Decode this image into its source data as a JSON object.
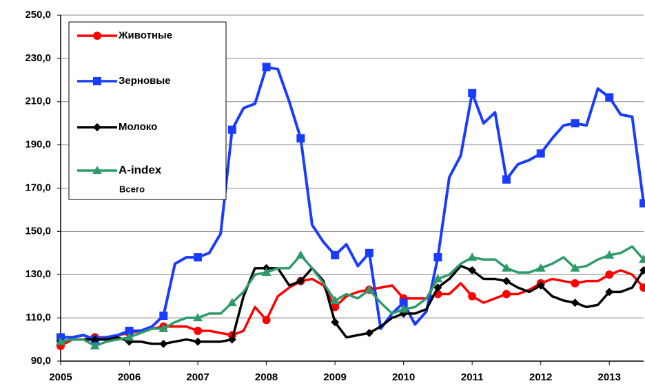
{
  "chart_data": {
    "type": "line",
    "x": [
      2005,
      2005.1667,
      2005.3333,
      2005.5,
      2005.6667,
      2005.8333,
      2006,
      2006.1667,
      2006.3333,
      2006.5,
      2006.6667,
      2006.8333,
      2007,
      2007.1667,
      2007.3333,
      2007.5,
      2007.6667,
      2007.8333,
      2008,
      2008.1667,
      2008.3333,
      2008.5,
      2008.6667,
      2008.8333,
      2009,
      2009.1667,
      2009.3333,
      2009.5,
      2009.6667,
      2009.8333,
      2010,
      2010.1667,
      2010.3333,
      2010.5,
      2010.6667,
      2010.8333,
      2011,
      2011.1667,
      2011.3333,
      2011.5,
      2011.6667,
      2011.8333,
      2012,
      2012.1667,
      2012.3333,
      2012.5,
      2012.6667,
      2012.8333,
      2013,
      2013.1667,
      2013.3333,
      2013.5
    ],
    "series": [
      {
        "name": "Животные",
        "color": "#ff0000",
        "marker": "circle",
        "values": [
          97,
          100,
          100,
          101,
          101,
          102,
          103,
          104,
          105,
          106,
          106,
          106,
          104,
          104,
          103,
          102,
          104,
          115,
          109,
          120,
          124,
          127,
          128,
          125,
          115,
          120,
          122,
          123,
          124,
          125,
          119,
          119,
          119,
          121,
          121,
          126,
          120,
          117,
          119,
          121,
          121,
          123,
          126,
          128,
          127,
          126,
          127,
          127,
          130,
          132,
          130,
          124
        ]
      },
      {
        "name": "Зерновые",
        "color": "#1a3cff",
        "marker": "square",
        "values": [
          101,
          101,
          102,
          100,
          101,
          102,
          104,
          104,
          106,
          111,
          135,
          138,
          138,
          140,
          149,
          197,
          207,
          209,
          226,
          225,
          210,
          193,
          153,
          145,
          139,
          144,
          134,
          140,
          105,
          112,
          117,
          107,
          113,
          138,
          175,
          185,
          214,
          200,
          205,
          174,
          181,
          183,
          186,
          193,
          199,
          200,
          199,
          216,
          212,
          204,
          203,
          163
        ]
      },
      {
        "name": "Молоко",
        "color": "#000000",
        "marker": "diamond",
        "values": [
          99,
          100,
          100,
          100,
          100,
          101,
          99,
          99,
          98,
          98,
          99,
          100,
          99,
          99,
          99,
          100,
          120,
          133,
          133,
          133,
          125,
          127,
          133,
          127,
          108,
          101,
          102,
          103,
          106,
          110,
          112,
          112,
          114,
          124,
          128,
          134,
          132,
          128,
          128,
          127,
          124,
          122,
          125,
          120,
          118,
          117,
          115,
          116,
          122,
          122,
          124,
          132
        ]
      },
      {
        "name": "A-index",
        "color": "#2e9a6a",
        "marker": "triangle",
        "values": [
          99,
          100,
          100,
          97,
          99,
          100,
          101,
          103,
          105,
          105,
          108,
          110,
          110,
          112,
          112,
          117,
          122,
          130,
          131,
          133,
          133,
          139,
          133,
          126,
          118,
          121,
          119,
          123,
          117,
          112,
          114,
          115,
          119,
          128,
          130,
          135,
          138,
          137,
          137,
          133,
          131,
          131,
          133,
          135,
          138,
          133,
          134,
          137,
          139,
          140,
          143,
          137
        ]
      }
    ],
    "legend_subtitle": "Всего",
    "xlim": [
      2005,
      2013.5
    ],
    "xticks": [
      2005,
      2006,
      2007,
      2008,
      2009,
      2010,
      2011,
      2012,
      2013
    ],
    "ylim": [
      90,
      250
    ],
    "yticks": [
      {
        "value": 90,
        "label": "90,0"
      },
      {
        "value": 110,
        "label": "110,0"
      },
      {
        "value": 130,
        "label": "130,0"
      },
      {
        "value": 150,
        "label": "150,0"
      },
      {
        "value": 170,
        "label": "170,0"
      },
      {
        "value": 190,
        "label": "190,0"
      },
      {
        "value": 210,
        "label": "210,0"
      },
      {
        "value": 230,
        "label": "230,0"
      },
      {
        "value": 250,
        "label": "250,0"
      }
    ],
    "grid": true,
    "marker_every": 3
  }
}
